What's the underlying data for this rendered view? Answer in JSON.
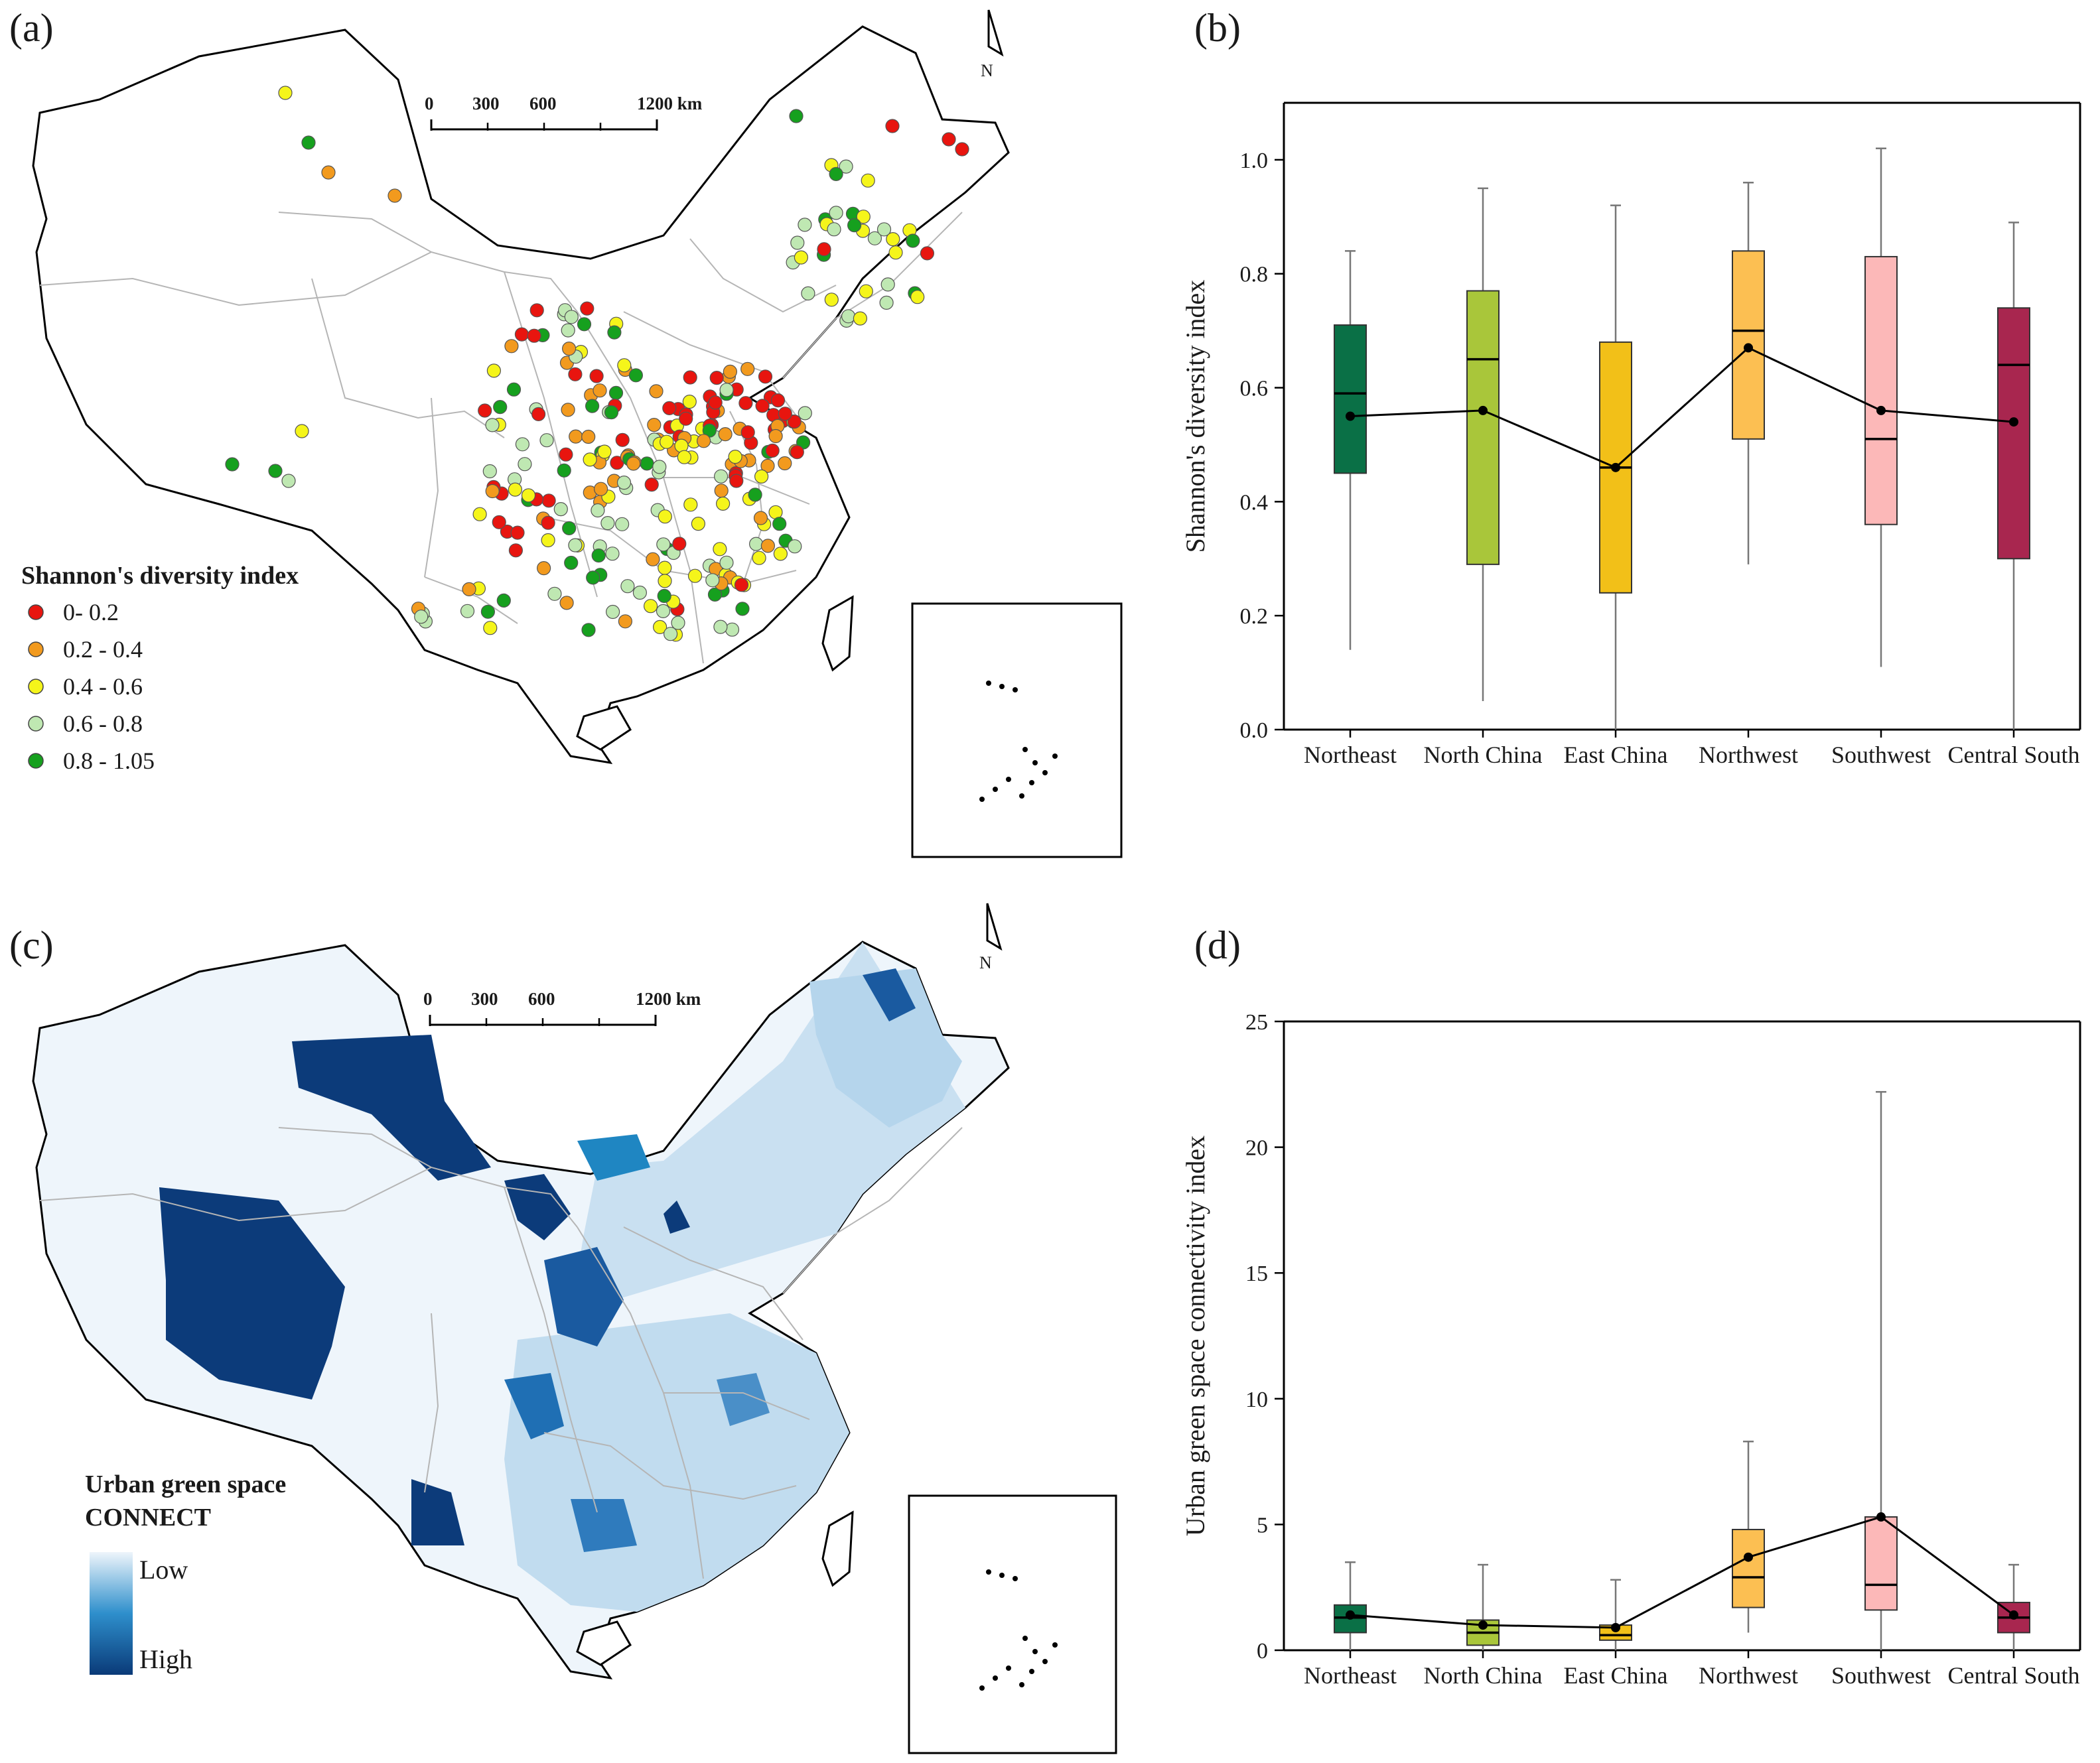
{
  "panels": {
    "a": "(a)",
    "b": "(b)",
    "c": "(c)",
    "d": "(d)"
  },
  "map_a": {
    "north": "N",
    "scale_labels": [
      "0",
      "300",
      "600",
      "1200 km"
    ],
    "legend_title": "Shannon's diversity index",
    "legend": [
      {
        "label": "0- 0.2",
        "color": "#e8150f"
      },
      {
        "label": "0.2 - 0.4",
        "color": "#f29a1e"
      },
      {
        "label": "0.4 - 0.6",
        "color": "#f5f51a"
      },
      {
        "label": "0.6 - 0.8",
        "color": "#bfe8b2"
      },
      {
        "label": "0.8 - 1.05",
        "color": "#16a01e"
      }
    ]
  },
  "map_c": {
    "north": "N",
    "scale_labels": [
      "0",
      "300",
      "600",
      "1200 km"
    ],
    "legend_title_1": "Urban green space",
    "legend_title_2": "CONNECT",
    "legend_low": "Low",
    "legend_high": "High",
    "colors": {
      "low": "#eef5fb",
      "high": "#0a3a78"
    }
  },
  "chart_data": [
    {
      "type": "box",
      "title": "",
      "xlabel": "",
      "ylabel": "Shannon's diversity index",
      "ylim": [
        0.0,
        1.1
      ],
      "yticks": [
        "0.0",
        "0.2",
        "0.4",
        "0.6",
        "0.8",
        "1.0"
      ],
      "categories": [
        "Northeast",
        "North China",
        "East China",
        "Northwest",
        "Southwest",
        "Central South"
      ],
      "colors": [
        "#0a7046",
        "#a9c63a",
        "#f2c018",
        "#fcbf52",
        "#fcb8b8",
        "#a8264f"
      ],
      "boxes": [
        {
          "min": 0.14,
          "q1": 0.45,
          "median": 0.59,
          "q3": 0.71,
          "max": 0.84,
          "mean": 0.55
        },
        {
          "min": 0.05,
          "q1": 0.29,
          "median": 0.65,
          "q3": 0.77,
          "max": 0.95,
          "mean": 0.56
        },
        {
          "min": 0.0,
          "q1": 0.24,
          "median": 0.46,
          "q3": 0.68,
          "max": 0.92,
          "mean": 0.46
        },
        {
          "min": 0.29,
          "q1": 0.51,
          "median": 0.7,
          "q3": 0.84,
          "max": 0.96,
          "mean": 0.67
        },
        {
          "min": 0.11,
          "q1": 0.36,
          "median": 0.51,
          "q3": 0.83,
          "max": 1.02,
          "mean": 0.56
        },
        {
          "min": 0.0,
          "q1": 0.3,
          "median": 0.64,
          "q3": 0.74,
          "max": 0.89,
          "mean": 0.54
        }
      ]
    },
    {
      "type": "box",
      "title": "",
      "xlabel": "",
      "ylabel": "Urban green space connectivity index",
      "ylim": [
        0,
        25
      ],
      "yticks": [
        "0",
        "5",
        "10",
        "15",
        "20",
        "25"
      ],
      "categories": [
        "Northeast",
        "North China",
        "East China",
        "Northwest",
        "Southwest",
        "Central South"
      ],
      "colors": [
        "#0a7046",
        "#a9c63a",
        "#f2c018",
        "#fcbf52",
        "#fcb8b8",
        "#a8264f"
      ],
      "boxes": [
        {
          "min": 0.0,
          "q1": 0.7,
          "median": 1.3,
          "q3": 1.8,
          "max": 3.5,
          "mean": 1.4
        },
        {
          "min": 0.0,
          "q1": 0.2,
          "median": 0.7,
          "q3": 1.2,
          "max": 3.4,
          "mean": 1.0
        },
        {
          "min": 0.0,
          "q1": 0.4,
          "median": 0.6,
          "q3": 1.0,
          "max": 2.8,
          "mean": 0.9
        },
        {
          "min": 0.7,
          "q1": 1.7,
          "median": 2.9,
          "q3": 4.8,
          "max": 8.3,
          "mean": 3.7
        },
        {
          "min": 0.0,
          "q1": 1.6,
          "median": 2.6,
          "q3": 5.3,
          "max": 22.2,
          "mean": 5.3
        },
        {
          "min": 0.0,
          "q1": 0.7,
          "median": 1.3,
          "q3": 1.9,
          "max": 3.4,
          "mean": 1.4
        }
      ]
    }
  ]
}
